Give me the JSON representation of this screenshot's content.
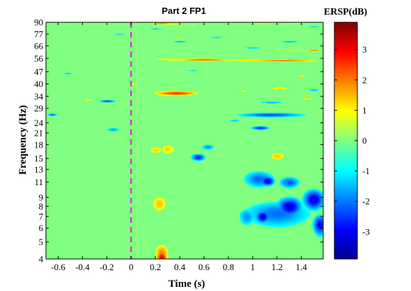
{
  "chart_data": {
    "type": "heatmap",
    "title": "Part 2 FP1",
    "xlabel": "Time (s)",
    "ylabel": "Frequency (Hz)",
    "xlim": [
      -0.7,
      1.58
    ],
    "x_ticks": [
      "-0.6",
      "-0.4",
      "-0.2",
      "0",
      "0.2",
      "0.4",
      "0.6",
      "0.8",
      "1",
      "1.2",
      "1.4"
    ],
    "y_ticks": [
      "4",
      "5",
      "6",
      "7",
      "8",
      "9",
      "11",
      "13",
      "15",
      "18",
      "21",
      "24",
      "29",
      "34",
      "40",
      "47",
      "56",
      "66",
      "77",
      "90"
    ],
    "colorbar": {
      "title": "ERSP(dB)",
      "range": [
        -3.9,
        3.9
      ],
      "ticks": [
        "3",
        "2",
        "1",
        "0",
        "-1",
        "-2",
        "-3"
      ]
    },
    "event_marker": {
      "time": 0,
      "style": "dashed",
      "color": "#cc44cc"
    },
    "background_value": 0,
    "blobs": [
      {
        "t": 0.25,
        "f": 4.3,
        "sx": 0.04,
        "sy": 0.4,
        "v": 2.0
      },
      {
        "t": 0.25,
        "f": 4.1,
        "sx": 0.03,
        "sy": 0.25,
        "v": 3.0
      },
      {
        "t": 0.23,
        "f": 8.3,
        "sx": 0.05,
        "sy": 0.7,
        "v": 1.4
      },
      {
        "t": 0.35,
        "f": 35.5,
        "sx": 0.15,
        "sy": 1.2,
        "v": 1.5
      },
      {
        "t": 0.37,
        "f": 35.5,
        "sx": 0.12,
        "sy": 0.7,
        "v": 2.6
      },
      {
        "t": 0.38,
        "f": 55.5,
        "sx": 0.2,
        "sy": 0.8,
        "v": 1.3
      },
      {
        "t": 1.05,
        "f": 55.0,
        "sx": 0.3,
        "sy": 0.8,
        "v": 1.3
      },
      {
        "t": 0.6,
        "f": 55.2,
        "sx": 0.15,
        "sy": 0.6,
        "v": 2.3
      },
      {
        "t": 1.25,
        "f": 54.7,
        "sx": 0.2,
        "sy": 0.5,
        "v": 2.2
      },
      {
        "t": 1.3,
        "f": 63.0,
        "sx": 0.12,
        "sy": 0.6,
        "v": 1.3
      },
      {
        "t": 1.5,
        "f": 62.5,
        "sx": 0.05,
        "sy": 0.5,
        "v": 2.2
      },
      {
        "t": 0.35,
        "f": 87.0,
        "sx": 0.2,
        "sy": 0.6,
        "v": 1.4
      },
      {
        "t": 0.25,
        "f": 89.5,
        "sx": 0.06,
        "sy": 0.4,
        "v": 3.0
      },
      {
        "t": 1.2,
        "f": 89.0,
        "sx": 0.2,
        "sy": 0.4,
        "v": 1.4
      },
      {
        "t": 0.2,
        "f": 16.8,
        "sx": 0.05,
        "sy": 0.6,
        "v": 1.3
      },
      {
        "t": 0.3,
        "f": 17.0,
        "sx": 0.05,
        "sy": 0.9,
        "v": 1.3
      },
      {
        "t": 1.2,
        "f": 15.5,
        "sx": 0.05,
        "sy": 0.6,
        "v": 1.4
      },
      {
        "t": 1.22,
        "f": 38.0,
        "sx": 0.07,
        "sy": 0.7,
        "v": 1.2
      },
      {
        "t": 1.45,
        "f": 33.0,
        "sx": 0.04,
        "sy": 0.4,
        "v": 1.3
      },
      {
        "t": 1.4,
        "f": 44.5,
        "sx": 0.04,
        "sy": 0.5,
        "v": 1.3
      },
      {
        "t": 0.02,
        "f": 40.0,
        "sx": 0.03,
        "sy": 0.4,
        "v": 1.2
      },
      {
        "t": -0.35,
        "f": 32.5,
        "sx": 0.05,
        "sy": 0.4,
        "v": 1.1
      },
      {
        "t": 0.92,
        "f": 36.5,
        "sx": 0.03,
        "sy": 0.4,
        "v": 1.1
      },
      {
        "t": -0.6,
        "f": 65.0,
        "sx": 0.04,
        "sy": 0.4,
        "v": 1.1
      },
      {
        "t": 0.9,
        "f": 78.0,
        "sx": 0.04,
        "sy": 0.4,
        "v": 1.1
      },
      {
        "t": 0.4,
        "f": 73.0,
        "sx": 0.04,
        "sy": 0.4,
        "v": 1.1
      },
      {
        "t": 1.05,
        "f": 11.5,
        "sx": 0.09,
        "sy": 0.9,
        "v": -2.2
      },
      {
        "t": 1.12,
        "f": 11.2,
        "sx": 0.04,
        "sy": 0.5,
        "v": -3.3
      },
      {
        "t": 1.3,
        "f": 11.0,
        "sx": 0.06,
        "sy": 0.6,
        "v": -2.3
      },
      {
        "t": 1.2,
        "f": 7.3,
        "sx": 0.2,
        "sy": 0.9,
        "v": -2.1
      },
      {
        "t": 1.3,
        "f": 8.0,
        "sx": 0.07,
        "sy": 0.7,
        "v": -3.3
      },
      {
        "t": 1.08,
        "f": 7.0,
        "sx": 0.04,
        "sy": 0.4,
        "v": -3.3
      },
      {
        "t": 1.5,
        "f": 8.8,
        "sx": 0.06,
        "sy": 0.8,
        "v": -3.3
      },
      {
        "t": 1.55,
        "f": 6.3,
        "sx": 0.04,
        "sy": 0.6,
        "v": -3.0
      },
      {
        "t": 0.95,
        "f": 7.0,
        "sx": 0.05,
        "sy": 0.6,
        "v": -1.8
      },
      {
        "t": 0.55,
        "f": 15.3,
        "sx": 0.04,
        "sy": 0.5,
        "v": -2.8
      },
      {
        "t": 0.63,
        "f": 17.5,
        "sx": 0.04,
        "sy": 0.5,
        "v": -1.8
      },
      {
        "t": -0.2,
        "f": 32.0,
        "sx": 0.05,
        "sy": 0.4,
        "v": -2.4
      },
      {
        "t": -0.15,
        "f": 22.0,
        "sx": 0.04,
        "sy": 0.4,
        "v": -1.7
      },
      {
        "t": -0.65,
        "f": 26.8,
        "sx": 0.03,
        "sy": 0.4,
        "v": -2.0
      },
      {
        "t": 1.15,
        "f": 26.7,
        "sx": 0.2,
        "sy": 0.6,
        "v": -2.3
      },
      {
        "t": 1.06,
        "f": 22.5,
        "sx": 0.05,
        "sy": 0.4,
        "v": -2.8
      },
      {
        "t": 1.15,
        "f": 31.5,
        "sx": 0.08,
        "sy": 0.4,
        "v": -1.6
      },
      {
        "t": 1.5,
        "f": 37.0,
        "sx": 0.04,
        "sy": 0.4,
        "v": -1.6
      },
      {
        "t": 0.5,
        "f": 48.0,
        "sx": 0.04,
        "sy": 0.3,
        "v": -1.4
      },
      {
        "t": -0.52,
        "f": 46.0,
        "sx": 0.03,
        "sy": 0.3,
        "v": -1.8
      },
      {
        "t": 0.4,
        "f": 70.0,
        "sx": 0.05,
        "sy": 0.5,
        "v": -1.8
      },
      {
        "t": 0.7,
        "f": 74.0,
        "sx": 0.05,
        "sy": 0.4,
        "v": -1.7
      },
      {
        "t": 1.0,
        "f": 64.5,
        "sx": 0.06,
        "sy": 0.4,
        "v": -1.7
      },
      {
        "t": 1.3,
        "f": 70.0,
        "sx": 0.06,
        "sy": 0.5,
        "v": -1.8
      },
      {
        "t": 1.5,
        "f": 85.0,
        "sx": 0.04,
        "sy": 0.3,
        "v": -2.0
      },
      {
        "t": 0.2,
        "f": 83.0,
        "sx": 0.04,
        "sy": 0.4,
        "v": -1.7
      },
      {
        "t": -0.1,
        "f": 77.0,
        "sx": 0.04,
        "sy": 0.3,
        "v": -1.5
      },
      {
        "t": 0.85,
        "f": 24.8,
        "sx": 0.04,
        "sy": 0.3,
        "v": -1.5
      }
    ]
  }
}
